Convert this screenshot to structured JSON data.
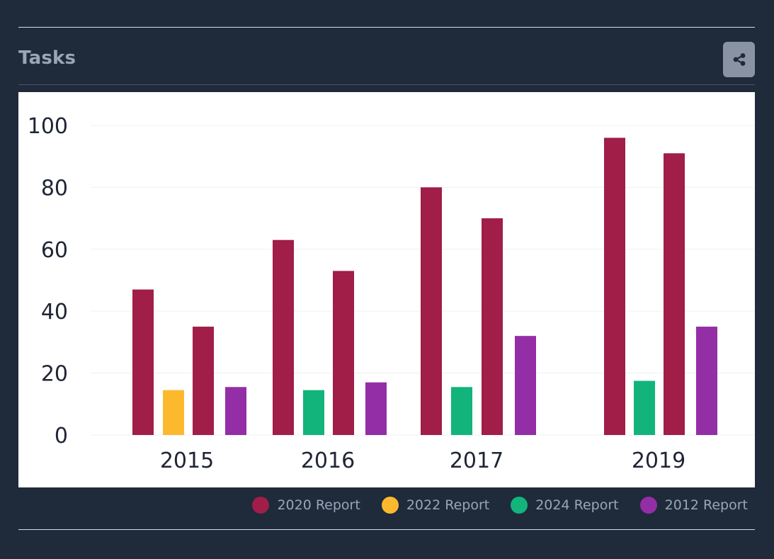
{
  "header": {
    "title": "Tasks",
    "share_icon": "share-icon"
  },
  "colors": {
    "background": "#1f2a3b",
    "title": "#9aa6b6",
    "share_button": "#8a93a2"
  },
  "chart_data": {
    "type": "bar",
    "title": "",
    "xlabel": "",
    "ylabel": "",
    "ylim": [
      0,
      100
    ],
    "yticks": [
      0,
      20,
      40,
      60,
      80,
      100
    ],
    "grid": true,
    "legend_position": "bottom-right",
    "groups": [
      {
        "label": "2015",
        "bars": [
          {
            "series": "2020 Report",
            "value": 47
          },
          {
            "series": "2022 Report",
            "value": 14.5
          },
          {
            "series": "2020 Report",
            "value": 35
          },
          {
            "series": "2012 Report",
            "value": 15.5
          }
        ]
      },
      {
        "label": "2016",
        "bars": [
          {
            "series": "2020 Report",
            "value": 63
          },
          {
            "series": "2024 Report",
            "value": 14.5
          },
          {
            "series": "2020 Report",
            "value": 53
          },
          {
            "series": "2012 Report",
            "value": 17
          }
        ]
      },
      {
        "label": "2017",
        "bars": [
          {
            "series": "2020 Report",
            "value": 80
          },
          {
            "series": "2024 Report",
            "value": 15.5
          },
          {
            "series": "2020 Report",
            "value": 70
          },
          {
            "series": "2012 Report",
            "value": 32
          }
        ]
      },
      {
        "label": "2019",
        "bars": [
          {
            "series": "2020 Report",
            "value": 96
          },
          {
            "series": "2024 Report",
            "value": 17.5
          },
          {
            "series": "2020 Report",
            "value": 91
          },
          {
            "series": "2012 Report",
            "value": 35
          }
        ]
      }
    ],
    "series": [
      {
        "name": "2020 Report",
        "color": "#a01e48"
      },
      {
        "name": "2022 Report",
        "color": "#fdb92e"
      },
      {
        "name": "2024 Report",
        "color": "#12b47c"
      },
      {
        "name": "2012 Report",
        "color": "#942ea6"
      }
    ]
  }
}
